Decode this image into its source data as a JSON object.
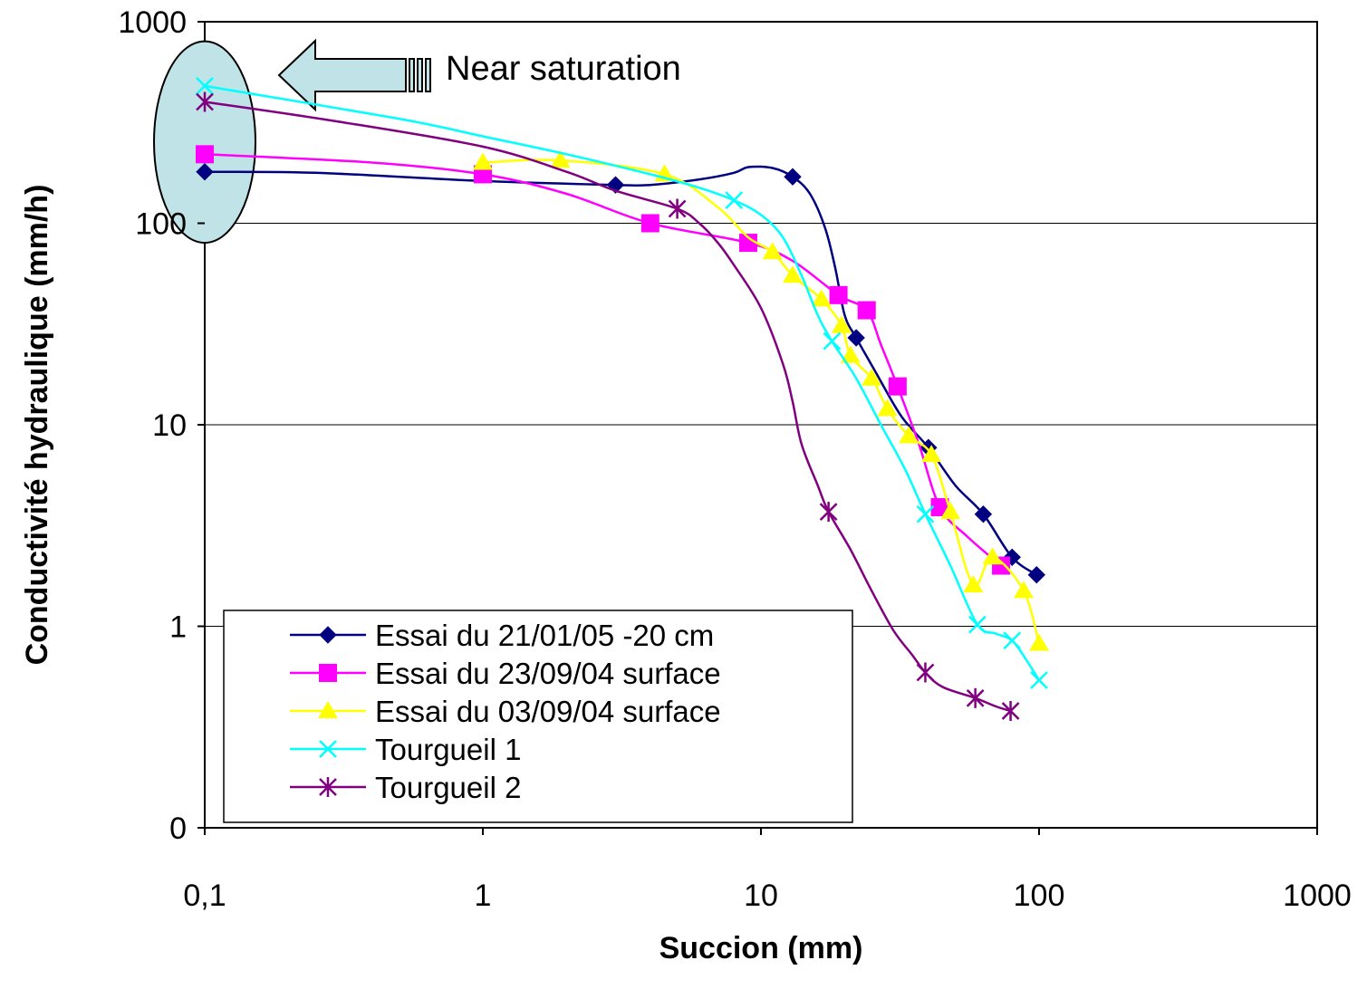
{
  "chart_data": {
    "type": "line",
    "xlabel": "Succion (mm)",
    "ylabel": "Conductivité hydraulique (mm/h)",
    "x_scale": "log",
    "y_scale": "log",
    "xlim": [
      0.1,
      1000
    ],
    "ylim": [
      0.1,
      1000
    ],
    "x_ticks": [
      {
        "value": 0.1,
        "label": "0,1"
      },
      {
        "value": 1,
        "label": "1"
      },
      {
        "value": 10,
        "label": "10"
      },
      {
        "value": 100,
        "label": "100"
      },
      {
        "value": 1000,
        "label": "1000"
      }
    ],
    "y_ticks": [
      {
        "value": 0.1,
        "label": "0"
      },
      {
        "value": 1,
        "label": "1"
      },
      {
        "value": 10,
        "label": "10"
      },
      {
        "value": 100,
        "label": "100"
      },
      {
        "value": 1000,
        "label": "1000"
      }
    ],
    "grid": "horizontal",
    "legend_position": "bottom-left",
    "annotation": {
      "text": "Near saturation",
      "target_x": 0.1,
      "target_y_range": [
        80,
        800
      ],
      "fill_color": "#bfe3e6"
    },
    "series": [
      {
        "name": "Essai du 21/01/05 -20 cm",
        "color": "#000080",
        "marker": "diamond",
        "markers": [
          [
            0.1,
            180
          ],
          [
            3,
            155
          ],
          [
            13,
            170
          ],
          [
            22,
            27
          ],
          [
            40,
            7.7
          ],
          [
            63,
            3.6
          ],
          [
            80,
            2.2
          ],
          [
            98,
            1.8
          ]
        ],
        "curve": [
          [
            0.1,
            180
          ],
          [
            0.25,
            178
          ],
          [
            1,
            162
          ],
          [
            3,
            155
          ],
          [
            4,
            155
          ],
          [
            6,
            165
          ],
          [
            8,
            178
          ],
          [
            9,
            190
          ],
          [
            11,
            188
          ],
          [
            13,
            170
          ],
          [
            15,
            140
          ],
          [
            17,
            95
          ],
          [
            18.5,
            60
          ],
          [
            20,
            35
          ],
          [
            22,
            27
          ],
          [
            26,
            18
          ],
          [
            32,
            11
          ],
          [
            40,
            7.7
          ],
          [
            50,
            5
          ],
          [
            63,
            3.6
          ],
          [
            80,
            2.2
          ],
          [
            98,
            1.8
          ]
        ]
      },
      {
        "name": "Essai du 23/09/04 surface",
        "color": "#ff00ff",
        "marker": "square",
        "markers": [
          [
            0.1,
            220
          ],
          [
            1,
            175
          ],
          [
            4,
            100
          ],
          [
            9,
            80
          ],
          [
            19,
            44
          ],
          [
            24,
            37
          ],
          [
            31,
            15.5
          ],
          [
            44,
            3.9
          ],
          [
            73,
            2
          ]
        ],
        "curve": [
          [
            0.1,
            220
          ],
          [
            0.4,
            200
          ],
          [
            1,
            175
          ],
          [
            2,
            140
          ],
          [
            4,
            100
          ],
          [
            9,
            80
          ],
          [
            13,
            65
          ],
          [
            19,
            44
          ],
          [
            24,
            37
          ],
          [
            27,
            25
          ],
          [
            31,
            15.5
          ],
          [
            37,
            8
          ],
          [
            44,
            3.9
          ],
          [
            55,
            2.8
          ],
          [
            73,
            2
          ]
        ]
      },
      {
        "name": "Essai du 03/09/04 surface",
        "color": "#ffff00",
        "marker": "triangle",
        "markers": [
          [
            1,
            200
          ],
          [
            1.9,
            205
          ],
          [
            4.5,
            175
          ],
          [
            11,
            72
          ],
          [
            13,
            55
          ],
          [
            16.5,
            42
          ],
          [
            19.5,
            31
          ],
          [
            21,
            22
          ],
          [
            25,
            17
          ],
          [
            28.5,
            12
          ],
          [
            34,
            8.8
          ],
          [
            41,
            7.1
          ],
          [
            48,
            3.7
          ],
          [
            58,
            1.6
          ],
          [
            68,
            2.2
          ],
          [
            88,
            1.5
          ],
          [
            100,
            0.82
          ]
        ],
        "curve": [
          [
            1,
            200
          ],
          [
            1.9,
            205
          ],
          [
            4.5,
            175
          ],
          [
            7,
            120
          ],
          [
            9,
            85
          ],
          [
            11,
            72
          ],
          [
            13,
            55
          ],
          [
            16.5,
            42
          ],
          [
            19.5,
            31
          ],
          [
            21,
            22
          ],
          [
            25,
            17
          ],
          [
            28.5,
            12
          ],
          [
            34,
            8.8
          ],
          [
            41,
            7.1
          ],
          [
            48,
            3.7
          ],
          [
            58,
            1.6
          ],
          [
            68,
            2.2
          ],
          [
            88,
            1.5
          ],
          [
            100,
            0.82
          ]
        ]
      },
      {
        "name": "Tourgueil 1",
        "color": "#00ffff",
        "marker": "x",
        "markers": [
          [
            0.1,
            480
          ],
          [
            8,
            130
          ],
          [
            18,
            26
          ],
          [
            39,
            3.6
          ],
          [
            60,
            1.02
          ],
          [
            80,
            0.85
          ],
          [
            100,
            0.54
          ]
        ],
        "curve": [
          [
            0.1,
            480
          ],
          [
            0.5,
            330
          ],
          [
            1,
            270
          ],
          [
            2,
            220
          ],
          [
            4,
            175
          ],
          [
            6,
            150
          ],
          [
            8,
            130
          ],
          [
            10,
            110
          ],
          [
            12,
            85
          ],
          [
            14,
            55
          ],
          [
            16,
            35
          ],
          [
            18,
            26
          ],
          [
            22,
            17
          ],
          [
            27,
            10
          ],
          [
            33,
            6
          ],
          [
            39,
            3.6
          ],
          [
            48,
            2
          ],
          [
            60,
            1.02
          ],
          [
            70,
            0.92
          ],
          [
            80,
            0.85
          ],
          [
            90,
            0.68
          ],
          [
            100,
            0.54
          ]
        ]
      },
      {
        "name": "Tourgueil 2",
        "color": "#800080",
        "marker": "star",
        "markers": [
          [
            0.1,
            400
          ],
          [
            5,
            118
          ],
          [
            17.5,
            3.7
          ],
          [
            39,
            0.59
          ],
          [
            59,
            0.44
          ],
          [
            79,
            0.38
          ]
        ],
        "curve": [
          [
            0.1,
            400
          ],
          [
            0.3,
            320
          ],
          [
            1,
            240
          ],
          [
            2,
            180
          ],
          [
            3,
            145
          ],
          [
            5,
            118
          ],
          [
            6,
            100
          ],
          [
            7,
            80
          ],
          [
            8,
            62
          ],
          [
            10,
            38
          ],
          [
            12,
            20
          ],
          [
            13,
            13
          ],
          [
            14,
            8
          ],
          [
            16,
            5
          ],
          [
            17.5,
            3.7
          ],
          [
            21,
            2.4
          ],
          [
            25,
            1.5
          ],
          [
            30,
            0.95
          ],
          [
            35,
            0.72
          ],
          [
            39,
            0.59
          ],
          [
            45,
            0.5
          ],
          [
            59,
            0.44
          ],
          [
            70,
            0.4
          ],
          [
            79,
            0.38
          ]
        ]
      }
    ]
  }
}
